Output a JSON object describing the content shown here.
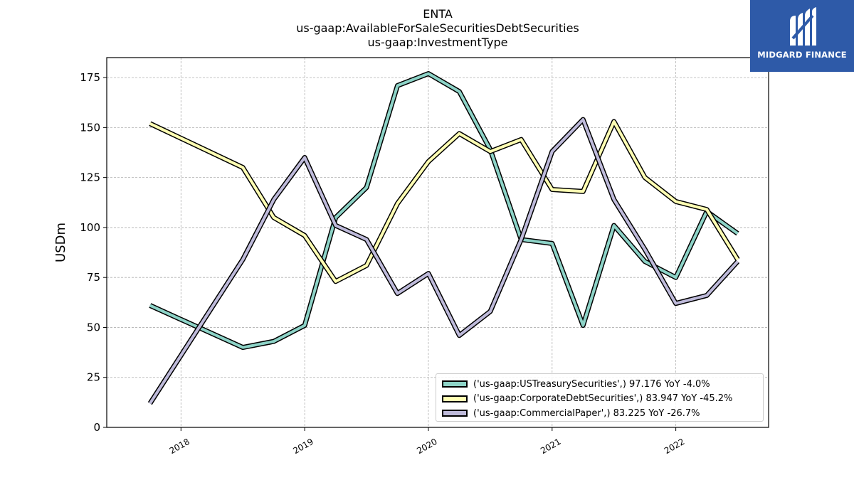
{
  "header": {
    "title": "ENTA",
    "subtitle1": "us-gaap:AvailableForSaleSecuritiesDebtSecurities",
    "subtitle2": "us-gaap:InvestmentType"
  },
  "logo": {
    "text": "MIDGARD FINANCE",
    "bg_color": "#2e5aa8"
  },
  "chart_data": {
    "type": "line",
    "ylabel": "USDm",
    "xlabel": "",
    "ylim": [
      0,
      185
    ],
    "xlim": [
      2017.4,
      2022.75
    ],
    "yticks": [
      0,
      25,
      50,
      75,
      100,
      125,
      150,
      175
    ],
    "xticks": [
      2018,
      2019,
      2020,
      2021,
      2022
    ],
    "grid": true,
    "legend_position": "lower-right",
    "series": [
      {
        "name": "('us-gaap:USTreasurySecurities',) 97.176 YoY -4.0%",
        "color": "#8dd3c7",
        "x": [
          2017.75,
          2018.5,
          2018.75,
          2019.0,
          2019.25,
          2019.5,
          2019.75,
          2020.0,
          2020.25,
          2020.5,
          2020.75,
          2021.0,
          2021.25,
          2021.5,
          2021.75,
          2022.0,
          2022.25,
          2022.5
        ],
        "y": [
          61,
          40,
          43,
          51,
          105,
          120,
          171,
          177,
          168,
          139,
          94,
          92,
          51,
          101,
          83,
          75,
          108,
          97
        ]
      },
      {
        "name": "('us-gaap:CorporateDebtSecurities',) 83.947 YoY -45.2%",
        "color": "#ffffb3",
        "x": [
          2017.75,
          2018.5,
          2018.75,
          2019.0,
          2019.25,
          2019.5,
          2019.75,
          2020.0,
          2020.25,
          2020.5,
          2020.75,
          2021.0,
          2021.25,
          2021.5,
          2021.75,
          2022.0,
          2022.25,
          2022.5
        ],
        "y": [
          152,
          130,
          105,
          96,
          73,
          81,
          112,
          133,
          147,
          138,
          144,
          119,
          118,
          153,
          125,
          113,
          109,
          84
        ]
      },
      {
        "name": "('us-gaap:CommercialPaper',) 83.225 YoY -26.7%",
        "color": "#bebada",
        "x": [
          2017.75,
          2018.5,
          2018.75,
          2019.0,
          2019.25,
          2019.5,
          2019.75,
          2020.0,
          2020.25,
          2020.5,
          2020.75,
          2021.0,
          2021.25,
          2021.5,
          2021.75,
          2022.0,
          2022.25,
          2022.5
        ],
        "y": [
          12,
          84,
          114,
          135,
          101,
          94,
          67,
          77,
          46,
          58,
          94,
          138,
          154,
          114,
          89,
          62,
          66,
          83
        ]
      }
    ]
  }
}
